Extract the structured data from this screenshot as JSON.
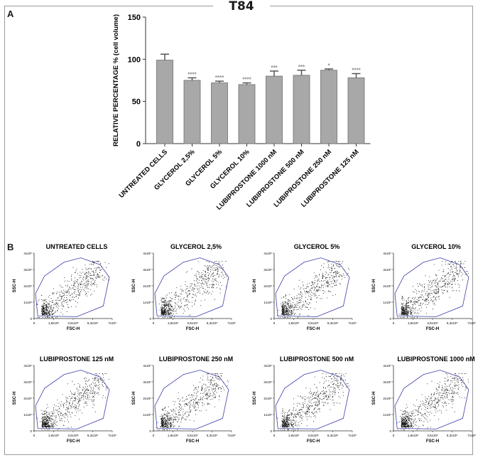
{
  "title": "T84",
  "panel_a_label": "A",
  "panel_b_label": "B",
  "chart_data": [
    {
      "type": "bar",
      "ylabel": "RELATIVE PERCENTAGE % (cell volume)",
      "ylim": [
        0,
        150
      ],
      "yticks": [
        0,
        50,
        100,
        150
      ],
      "categories": [
        "UNTREATED CELLS",
        "GLYCEROL 2,5%",
        "GLYCEROL 5%",
        "GLYCEROL 10%",
        "LUBIPROSTONE 1000 nM",
        "LUBIPROSTONE 500 nM",
        "LUBIPROSTONE 250 nM",
        "LUBIPROSTONE 125 nM"
      ],
      "values": [
        99,
        75,
        72,
        70,
        80,
        81,
        87,
        78
      ],
      "errors": [
        7,
        3,
        2,
        2,
        6,
        6,
        1.5,
        5
      ],
      "significance": [
        "",
        "****",
        "****",
        "****",
        "***",
        "***",
        "*",
        "****"
      ],
      "colors": {
        "bar": "#a8a8a8",
        "bar_edge": "#6e6e6e",
        "stars": "#8c8c8c"
      }
    },
    {
      "type": "scatter",
      "xlabel": "FSC-H",
      "ylabel": "SSC-H",
      "xticks": [
        "0",
        "1,8x10⁶",
        "3,5x10⁶",
        "5,3x10⁶",
        "7x10⁶"
      ],
      "yticks": [
        "0",
        "1x10⁶",
        "2x10⁶",
        "3x10⁶",
        "4x10⁶"
      ],
      "xlim": [
        0,
        7000000
      ],
      "ylim": [
        0,
        4000000
      ],
      "gate_color": "#3b3fa8",
      "panels": [
        {
          "title": "UNTREATED CELLS"
        },
        {
          "title": "GLYCEROL 2,5%"
        },
        {
          "title": "GLYCEROL 5%"
        },
        {
          "title": "GLYCEROL 10%"
        },
        {
          "title": "LUBIPROSTONE 125 nM"
        },
        {
          "title": "LUBIPROSTONE 250 nM"
        },
        {
          "title": "LUBIPROSTONE 500 nM"
        },
        {
          "title": "LUBIPROSTONE 1000 nM"
        }
      ]
    }
  ]
}
